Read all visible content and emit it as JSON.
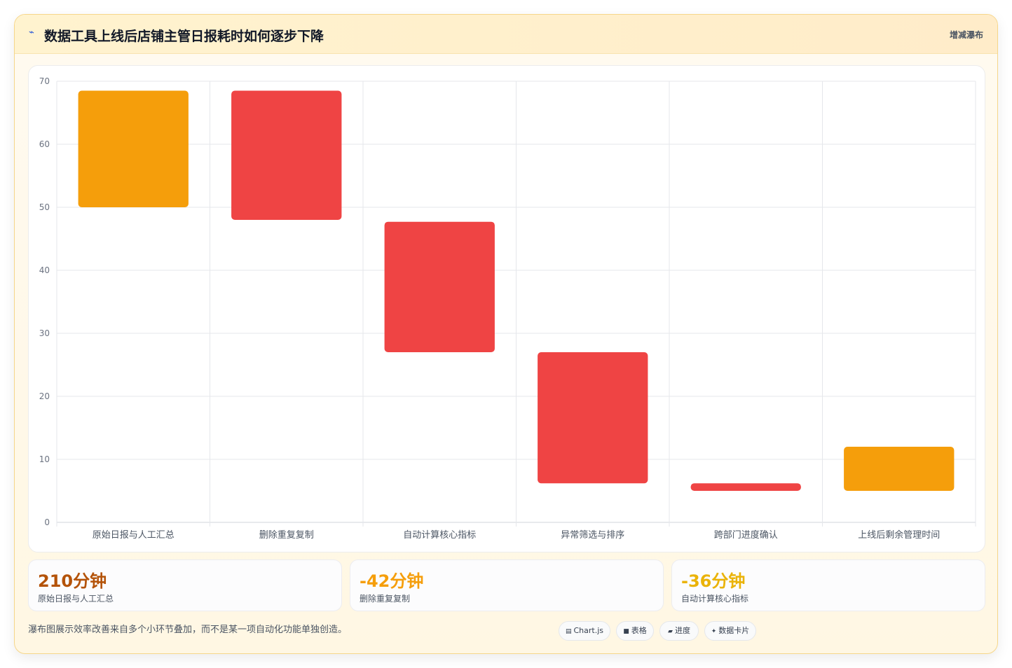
{
  "header": {
    "icon": "trend-icon",
    "title": "数据工具上线后店铺主管日报耗时如何逐步下降",
    "tag": "增减瀑布"
  },
  "chart_data": {
    "type": "bar",
    "subtype": "waterfall-floating",
    "categories": [
      "原始日报与人工汇总",
      "删除重复复制",
      "自动计算核心指标",
      "异常筛选与排序",
      "跨部门进度确认",
      "上线后剩余管理时间"
    ],
    "bars": [
      {
        "category": "原始日报与人工汇总",
        "low": 50,
        "high": 68.5,
        "kind": "total",
        "color": "#f59e0b"
      },
      {
        "category": "删除重复复制",
        "low": 48,
        "high": 68.5,
        "kind": "decrease",
        "color": "#ef4444"
      },
      {
        "category": "自动计算核心指标",
        "low": 27,
        "high": 47.7,
        "kind": "decrease",
        "color": "#ef4444"
      },
      {
        "category": "异常筛选与排序",
        "low": 6.2,
        "high": 27,
        "kind": "decrease",
        "color": "#ef4444"
      },
      {
        "category": "跨部门进度确认",
        "low": 5,
        "high": 6.2,
        "kind": "decrease",
        "color": "#ef4444"
      },
      {
        "category": "上线后剩余管理时间",
        "low": 5,
        "high": 12,
        "kind": "total",
        "color": "#f59e0b"
      }
    ],
    "ylim": [
      0,
      70
    ],
    "yticks": [
      0,
      10,
      20,
      30,
      40,
      50,
      60,
      70
    ],
    "grid": true,
    "legend": "none",
    "title": "",
    "xlabel": "",
    "ylabel": ""
  },
  "stats": [
    {
      "value": "210分钟",
      "label": "原始日报与人工汇总",
      "color": "#b45309"
    },
    {
      "value": "-42分钟",
      "label": "删除重复复制",
      "color": "#f59e0b"
    },
    {
      "value": "-36分钟",
      "label": "自动计算核心指标",
      "color": "#eab308"
    }
  ],
  "footnote": "瀑布图展示效率改善来自多个小环节叠加，而不是某一项自动化功能单独创造。",
  "chips": [
    {
      "icon": "chart-icon",
      "glyph": "▤",
      "label": "Chart.js"
    },
    {
      "icon": "table-icon",
      "glyph": "■",
      "label": "表格"
    },
    {
      "icon": "progress-icon",
      "glyph": "▰",
      "label": "进度"
    },
    {
      "icon": "card-icon",
      "glyph": "✦",
      "label": "数据卡片"
    }
  ]
}
